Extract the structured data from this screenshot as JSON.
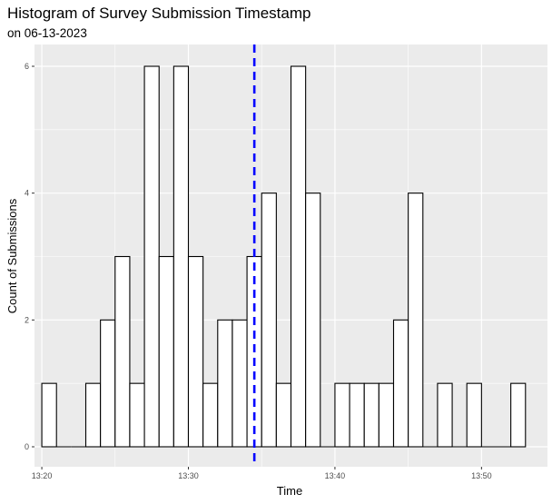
{
  "chart_data": {
    "type": "bar",
    "title": "Histogram of Survey Submission Timestamp",
    "subtitle": "on 06-13-2023",
    "xlabel": "Time",
    "ylabel": "Count of Submissions",
    "xlim": [
      "13:19:30",
      "13:54:30"
    ],
    "ylim": [
      0,
      6.3
    ],
    "grid": true,
    "x_ticks": [
      "13:20",
      "13:30",
      "13:40",
      "13:50"
    ],
    "y_ticks": [
      0,
      2,
      4,
      6
    ],
    "bin_start": "13:20",
    "bin_width_minutes": 1,
    "bins": [
      {
        "start": "13:20",
        "count": 1
      },
      {
        "start": "13:21",
        "count": 0
      },
      {
        "start": "13:22",
        "count": 0
      },
      {
        "start": "13:23",
        "count": 1
      },
      {
        "start": "13:24",
        "count": 2
      },
      {
        "start": "13:25",
        "count": 3
      },
      {
        "start": "13:26",
        "count": 1
      },
      {
        "start": "13:27",
        "count": 6
      },
      {
        "start": "13:28",
        "count": 3
      },
      {
        "start": "13:29",
        "count": 6
      },
      {
        "start": "13:30",
        "count": 3
      },
      {
        "start": "13:31",
        "count": 1
      },
      {
        "start": "13:32",
        "count": 2
      },
      {
        "start": "13:33",
        "count": 2
      },
      {
        "start": "13:34",
        "count": 3
      },
      {
        "start": "13:35",
        "count": 4
      },
      {
        "start": "13:36",
        "count": 1
      },
      {
        "start": "13:37",
        "count": 6
      },
      {
        "start": "13:38",
        "count": 4
      },
      {
        "start": "13:39",
        "count": 0
      },
      {
        "start": "13:40",
        "count": 1
      },
      {
        "start": "13:41",
        "count": 1
      },
      {
        "start": "13:42",
        "count": 1
      },
      {
        "start": "13:43",
        "count": 1
      },
      {
        "start": "13:44",
        "count": 2
      },
      {
        "start": "13:45",
        "count": 4
      },
      {
        "start": "13:46",
        "count": 0
      },
      {
        "start": "13:47",
        "count": 1
      },
      {
        "start": "13:48",
        "count": 0
      },
      {
        "start": "13:49",
        "count": 1
      },
      {
        "start": "13:50",
        "count": 0
      },
      {
        "start": "13:51",
        "count": 0
      },
      {
        "start": "13:52",
        "count": 1
      }
    ],
    "reference_line": {
      "x": "13:34:30",
      "style": "dashed",
      "color": "#0000ff"
    },
    "colors": {
      "panel": "#ebebeb",
      "grid": "#ffffff",
      "bar_fill": "#ffffff",
      "bar_outline": "#000000"
    }
  }
}
